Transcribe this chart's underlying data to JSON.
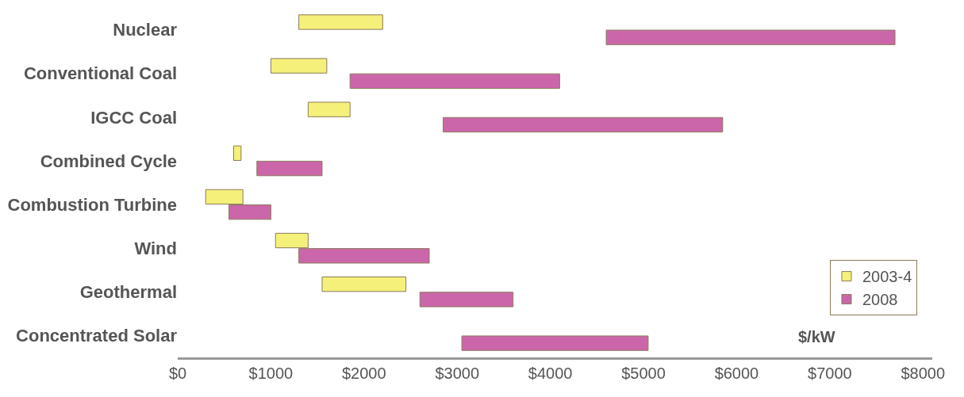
{
  "chart_data": {
    "type": "bar",
    "orientation": "horizontal",
    "categories": [
      "Nuclear",
      "Conventional Coal",
      "IGCC Coal",
      "Combined Cycle",
      "Combustion Turbine",
      "Wind",
      "Geothermal",
      "Concentrated Solar"
    ],
    "series": [
      {
        "name": "2003-4",
        "color": "#f5f07a",
        "base": [
          1300,
          1000,
          1400,
          600,
          300,
          1050,
          1550,
          null
        ],
        "values": [
          900,
          600,
          450,
          80,
          400,
          350,
          900,
          null
        ]
      },
      {
        "name": "2008",
        "color": "#cc66aa",
        "base": [
          4600,
          1850,
          2850,
          850,
          550,
          1300,
          2600,
          3050
        ],
        "values": [
          3100,
          2250,
          3000,
          700,
          450,
          1400,
          1000,
          2000
        ]
      }
    ],
    "xlim": [
      0,
      8100
    ],
    "xticks": [
      {
        "value": 0,
        "label": "$0"
      },
      {
        "value": 1000,
        "label": "$1000"
      },
      {
        "value": 2000,
        "label": "$2000"
      },
      {
        "value": 3000,
        "label": "$3000"
      },
      {
        "value": 4000,
        "label": "$4000"
      },
      {
        "value": 5000,
        "label": "$5000"
      },
      {
        "value": 6000,
        "label": "$6000"
      },
      {
        "value": 7000,
        "label": "$7000"
      },
      {
        "value": 8000,
        "label": "$8000"
      }
    ],
    "annotations": [
      "$/kW"
    ],
    "legend": "bottom right"
  }
}
